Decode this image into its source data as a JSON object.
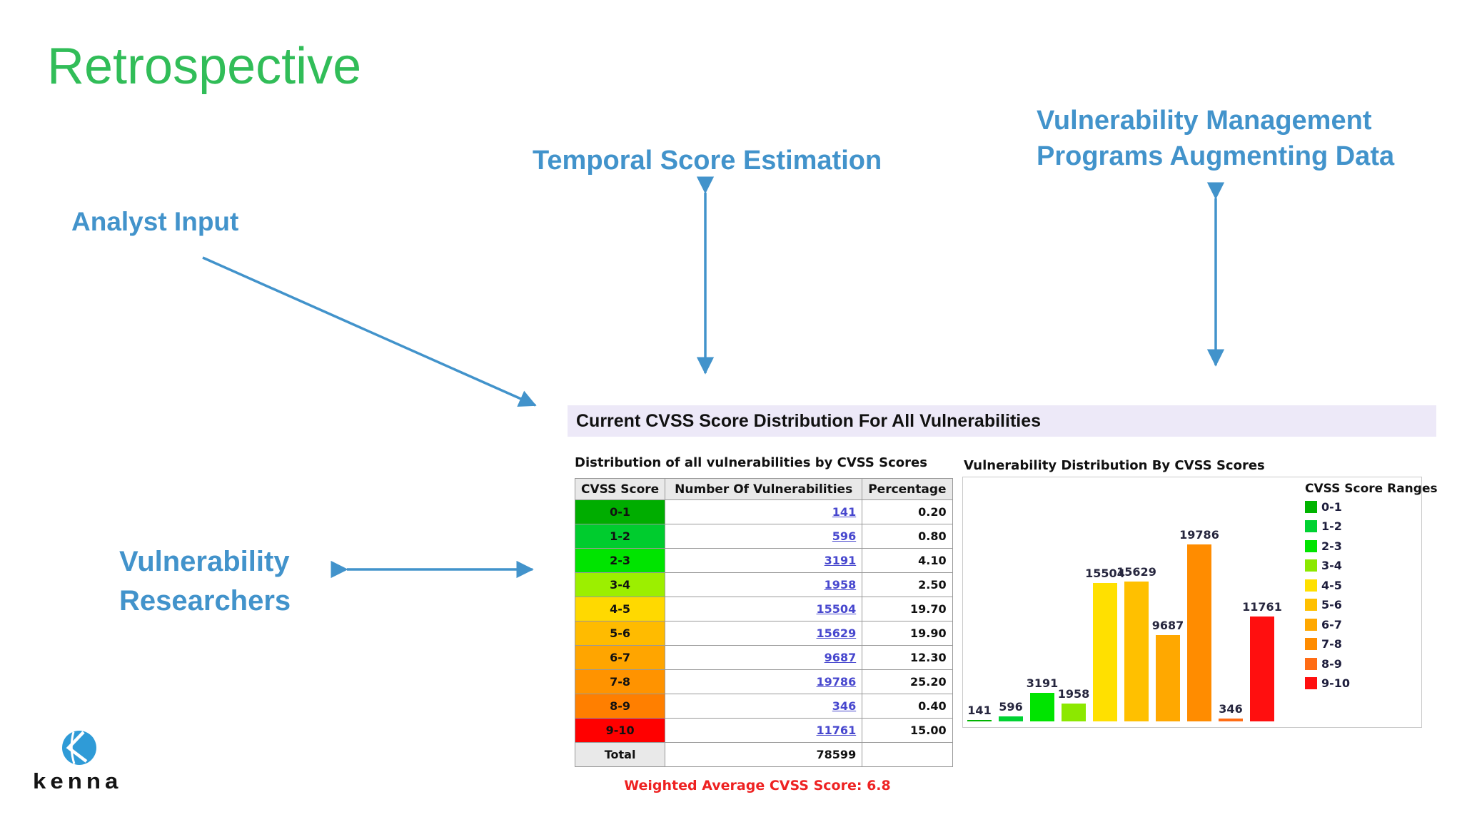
{
  "title": "Retrospective",
  "labels": {
    "analyst_input": "Analyst Input",
    "temporal": "Temporal Score Estimation",
    "vm_line1": "Vulnerability Management",
    "vm_line2": "Programs Augmenting Data",
    "researchers_line1": "Vulnerability",
    "researchers_line2": "Researchers"
  },
  "colors": {
    "title_green": "#31BD58",
    "label_blue": "#4293CB",
    "arrow_blue": "#4293CB",
    "header_bar_bg": "#EDE9F8",
    "link": "#4747CE",
    "weighted_red": "#EE2222",
    "logo_blue": "#2F9BD7"
  },
  "panel_header": "Current CVSS Score Distribution For All Vulnerabilities",
  "table": {
    "caption": "Distribution of all vulnerabilities by CVSS Scores",
    "columns": [
      "CVSS Score",
      "Number Of Vulnerabilities",
      "Percentage"
    ],
    "rows": [
      {
        "range": "0-1",
        "count": "141",
        "percentage": "0.20",
        "color": "#00AD00"
      },
      {
        "range": "1-2",
        "count": "596",
        "percentage": "0.80",
        "color": "#00CC2E"
      },
      {
        "range": "2-3",
        "count": "3191",
        "percentage": "4.10",
        "color": "#00E400"
      },
      {
        "range": "3-4",
        "count": "1958",
        "percentage": "2.50",
        "color": "#9CEF00"
      },
      {
        "range": "4-5",
        "count": "15504",
        "percentage": "19.70",
        "color": "#FFD900"
      },
      {
        "range": "5-6",
        "count": "15629",
        "percentage": "19.90",
        "color": "#FFBB00"
      },
      {
        "range": "6-7",
        "count": "9687",
        "percentage": "12.30",
        "color": "#FFA500"
      },
      {
        "range": "7-8",
        "count": "19786",
        "percentage": "25.20",
        "color": "#FF9300"
      },
      {
        "range": "8-9",
        "count": "346",
        "percentage": "0.40",
        "color": "#FF7F00"
      },
      {
        "range": "9-10",
        "count": "11761",
        "percentage": "15.00",
        "color": "#FF0000"
      }
    ],
    "total_label": "Total",
    "total_count": "78599",
    "weighted_label": "Weighted Average CVSS Score:",
    "weighted_value": "6.8"
  },
  "chart_data": {
    "type": "bar",
    "title": "Vulnerability Distribution By CVSS Scores",
    "legend_title": "CVSS Score Ranges",
    "legend_position": "right",
    "categories": [
      "0-1",
      "1-2",
      "2-3",
      "3-4",
      "4-5",
      "5-6",
      "6-7",
      "7-8",
      "8-9",
      "9-10"
    ],
    "values": [
      141,
      596,
      3191,
      1958,
      15504,
      15629,
      9687,
      19786,
      346,
      11761
    ],
    "data_labels": [
      "141",
      "596",
      "3191",
      "1958",
      "15504",
      "15629",
      "9687",
      "19786",
      "346",
      "11761"
    ],
    "bar_colors": [
      "#00B400",
      "#00D232",
      "#00E400",
      "#8CE800",
      "#FFE000",
      "#FFC000",
      "#FFA800",
      "#FF8C00",
      "#FF6C14",
      "#FF0F0F"
    ],
    "ylim": [
      0,
      20000
    ],
    "grid": false,
    "xlabel": "",
    "ylabel": ""
  },
  "logo": {
    "wordmark": "kenna"
  }
}
